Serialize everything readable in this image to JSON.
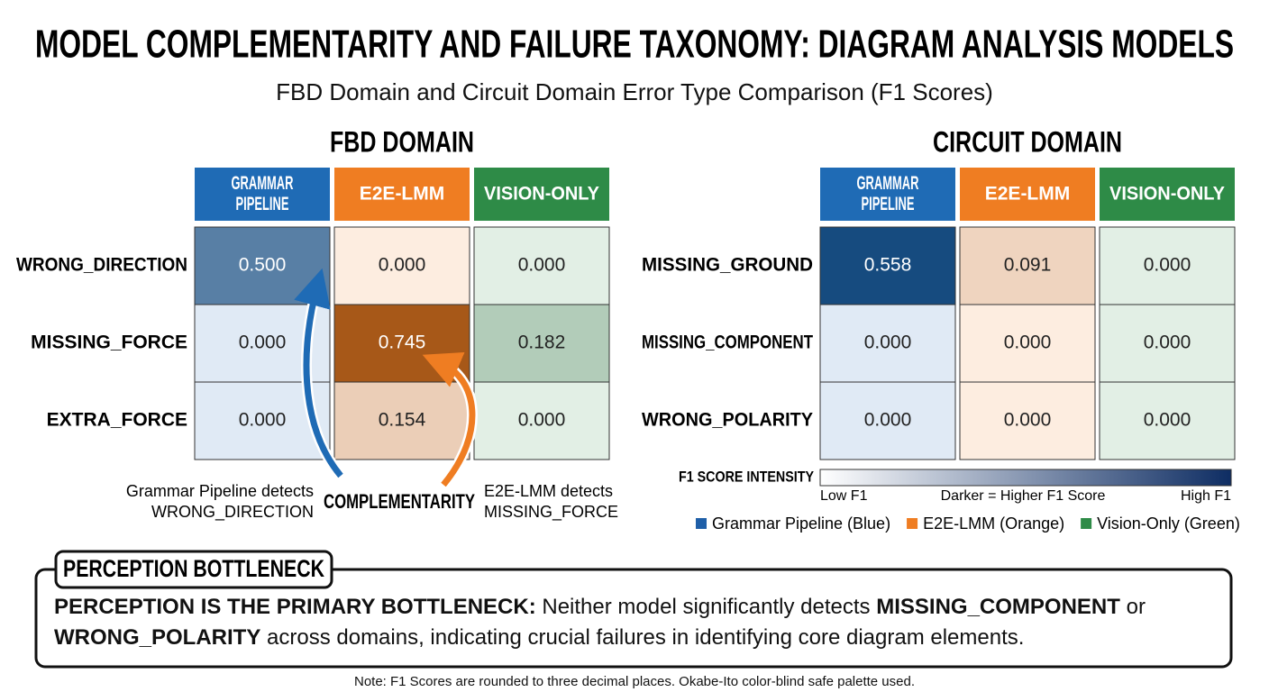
{
  "title": "MODEL COMPLEMENTARITY AND FAILURE TAXONOMY: DIAGRAM ANALYSIS MODELS",
  "subtitle": "FBD Domain and Circuit Domain Error Type Comparison (F1 Scores)",
  "chart_data": [
    {
      "type": "heatmap",
      "title": "FBD DOMAIN",
      "x": [
        "GRAMMAR PIPELINE",
        "E2E-LMM",
        "VISION-ONLY"
      ],
      "y": [
        "WRONG_DIRECTION",
        "MISSING_FORCE",
        "EXTRA_FORCE"
      ],
      "values": [
        [
          0.5,
          0,
          0
        ],
        [
          0,
          0.745,
          0.182
        ],
        [
          0,
          0.154,
          0
        ]
      ],
      "value_labels": [
        [
          "0.500",
          "0.000",
          "0.000"
        ],
        [
          "0.000",
          "0.745",
          "0.182"
        ],
        [
          "0.000",
          "0.154",
          "0.000"
        ]
      ],
      "colors": [
        "#1f6bb5",
        "#ef7d22",
        "#2e8b47"
      ]
    },
    {
      "type": "heatmap",
      "title": "CIRCUIT DOMAIN",
      "x": [
        "GRAMMAR PIPELINE",
        "E2E-LMM",
        "VISION-ONLY"
      ],
      "y": [
        "MISSING_GROUND",
        "MISSING_COMPONENT",
        "WRONG_POLARITY"
      ],
      "values": [
        [
          0.558,
          0.091,
          0
        ],
        [
          0,
          0,
          0
        ],
        [
          0,
          0,
          0
        ]
      ],
      "value_labels": [
        [
          "0.558",
          "0.091",
          "0.000"
        ],
        [
          "0.000",
          "0.000",
          "0.000"
        ],
        [
          "0.000",
          "0.000",
          "0.000"
        ]
      ],
      "colors": [
        "#1f6bb5",
        "#ef7d22",
        "#2e8b47"
      ]
    }
  ],
  "annotations": {
    "left": [
      "Grammar Pipeline detects",
      "WRONG_DIRECTION"
    ],
    "center": "COMPLEMENTARITY",
    "right": [
      "E2E-LMM detects",
      "MISSING_FORCE"
    ]
  },
  "colorbar": {
    "title": "F1 SCORE INTENSITY",
    "low_label": "Low F1",
    "mid_label": "Darker = Higher F1 Score",
    "high_label": "High F1",
    "colors": [
      "#ffffff",
      "#0e2d63"
    ]
  },
  "legend": [
    {
      "label": "Grammar Pipeline (Blue)",
      "color": "#1f5fa8"
    },
    {
      "label": "E2E-LMM (Orange)",
      "color": "#ef7d22"
    },
    {
      "label": "Vision-Only (Green)",
      "color": "#2e8b47"
    }
  ],
  "callout": {
    "heading": "PERCEPTION BOTTLENECK",
    "segments": [
      {
        "text": "PERCEPTION IS THE PRIMARY BOTTLENECK:",
        "bold": true
      },
      {
        "text": " Neither model significantly detects ",
        "bold": false
      },
      {
        "text": "MISSING_COMPONENT",
        "bold": true
      },
      {
        "text": " or ",
        "bold": false
      },
      {
        "text": "WRONG_POLARITY",
        "bold": true
      },
      {
        "text": " across domains, indicating crucial failures in identifying core diagram elements.",
        "bold": false
      }
    ]
  },
  "note": "Note: F1 Scores are rounded to three decimal places. Okabe-Ito color-blind safe palette used."
}
